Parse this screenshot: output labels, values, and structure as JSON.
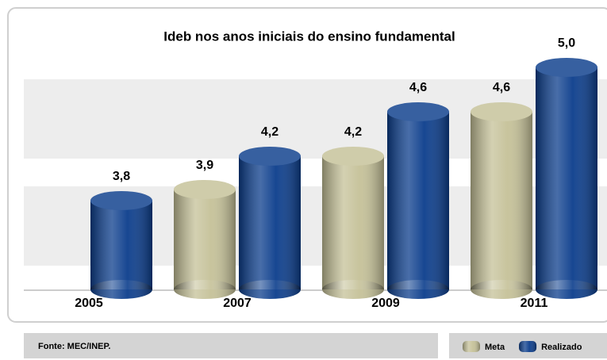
{
  "chart_data": {
    "type": "bar",
    "title": "Ideb nos anos iniciais do ensino fundamental",
    "categories": [
      "2005",
      "2007",
      "2009",
      "2011"
    ],
    "series": [
      {
        "name": "Meta",
        "color": "#c5c198",
        "values": [
          null,
          3.9,
          4.2,
          4.6
        ],
        "value_labels": [
          null,
          "3,9",
          "4,2",
          "4,6"
        ]
      },
      {
        "name": "Realizado",
        "color": "#0b3d8c",
        "values": [
          3.8,
          4.2,
          4.6,
          5.0
        ],
        "value_labels": [
          "3,8",
          "4,2",
          "4,6",
          "5,0"
        ]
      }
    ],
    "ylim": [
      3,
      5.3
    ],
    "source": "Fonte: MEC/INEP."
  }
}
